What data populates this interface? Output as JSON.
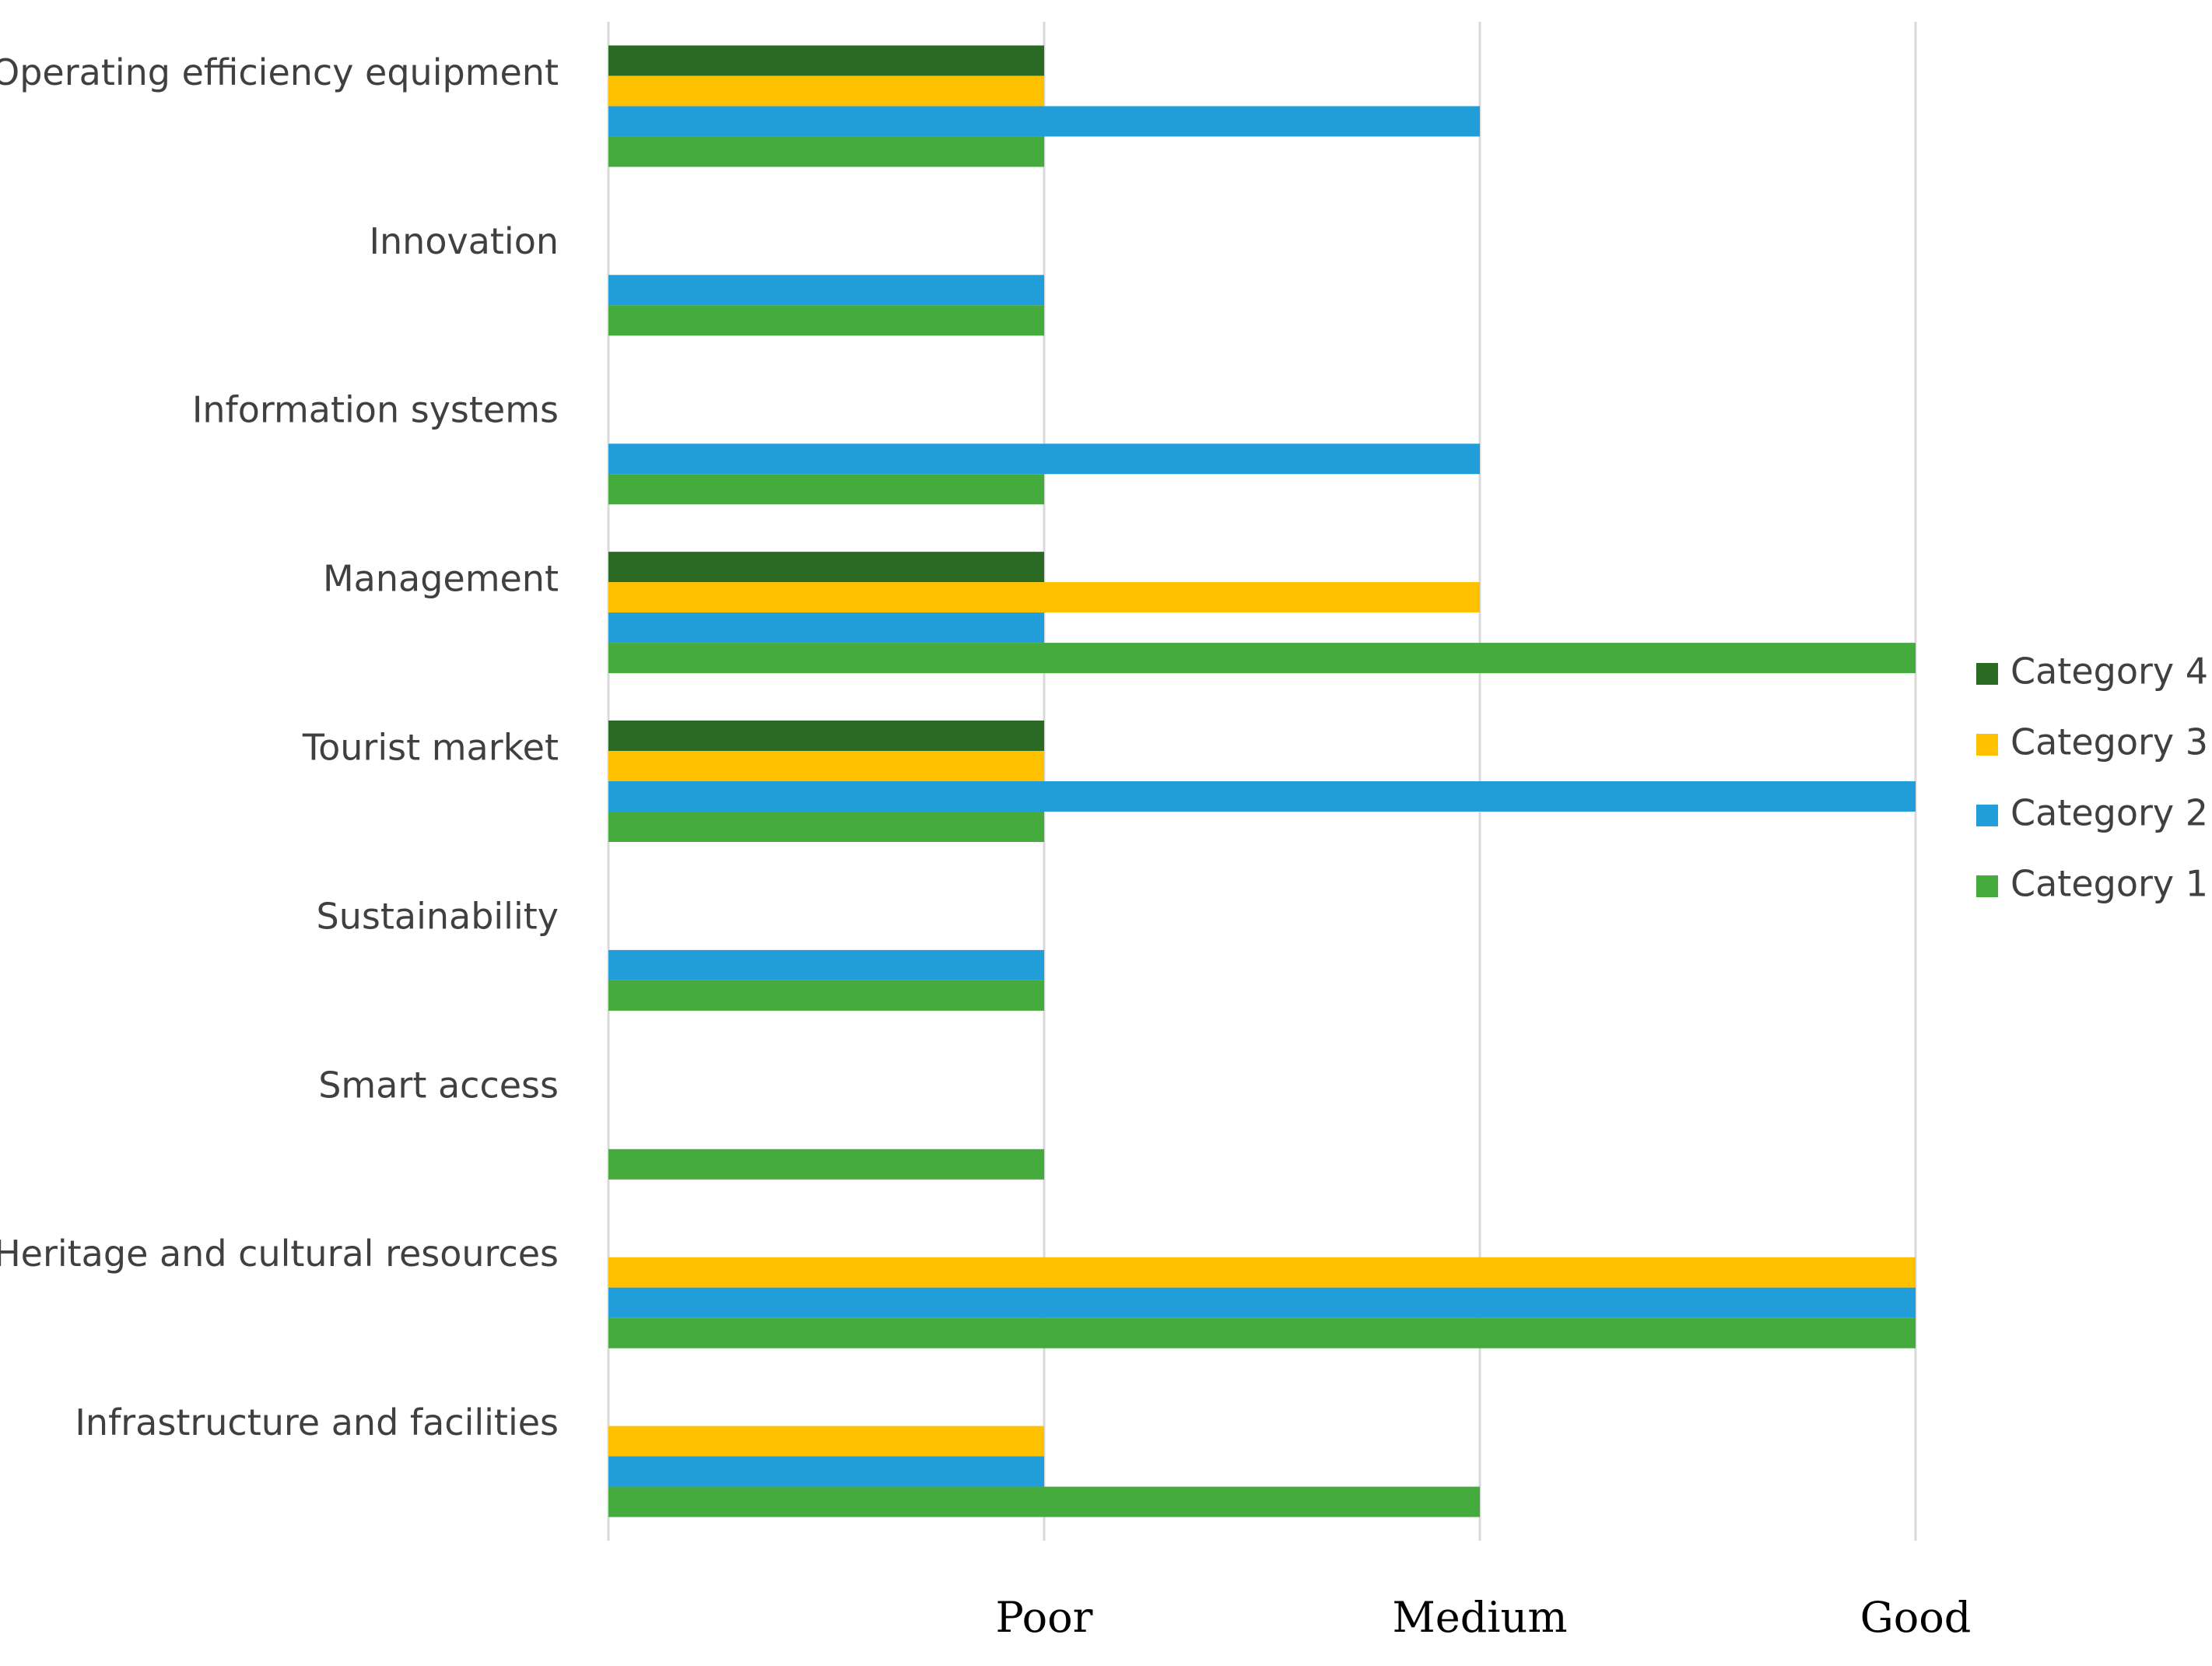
{
  "chart_data": {
    "type": "bar",
    "orientation": "horizontal",
    "title": "",
    "xlabel": "",
    "ylabel": "",
    "categories": [
      "Operating efficiency equipment",
      "Innovation",
      "Information systems",
      "Management",
      "Tourist market",
      "Sustainability",
      "Smart access",
      "Heritage and cultural resources",
      "Infrastructure and facilities"
    ],
    "x_ticks": [
      {
        "value": 1,
        "label": "Poor"
      },
      {
        "value": 2,
        "label": "Medium"
      },
      {
        "value": 3,
        "label": "Good"
      }
    ],
    "xlim": [
      0,
      3
    ],
    "grid": true,
    "legend_position": "right",
    "series": [
      {
        "name": "Category 4",
        "color": "#2a6a22",
        "values": [
          1,
          null,
          null,
          1,
          1,
          null,
          null,
          null,
          null
        ]
      },
      {
        "name": "Category 3",
        "color": "#ffc000",
        "values": [
          1,
          null,
          null,
          2,
          1,
          null,
          null,
          3,
          1
        ]
      },
      {
        "name": "Category 2",
        "color": "#219ed9",
        "values": [
          2,
          1,
          2,
          1,
          3,
          1,
          null,
          3,
          1
        ]
      },
      {
        "name": "Category 1",
        "color": "#44ab3c",
        "values": [
          1,
          1,
          1,
          3,
          1,
          1,
          1,
          3,
          2
        ]
      }
    ],
    "legend_order": [
      "Category 4",
      "Category 3",
      "Category 2",
      "Category 1"
    ]
  }
}
